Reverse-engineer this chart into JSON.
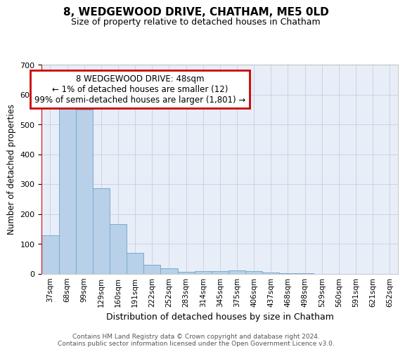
{
  "title1": "8, WEDGEWOOD DRIVE, CHATHAM, ME5 0LD",
  "title2": "Size of property relative to detached houses in Chatham",
  "xlabel": "Distribution of detached houses by size in Chatham",
  "ylabel": "Number of detached properties",
  "categories": [
    "37sqm",
    "68sqm",
    "99sqm",
    "129sqm",
    "160sqm",
    "191sqm",
    "222sqm",
    "252sqm",
    "283sqm",
    "314sqm",
    "345sqm",
    "375sqm",
    "406sqm",
    "437sqm",
    "468sqm",
    "498sqm",
    "529sqm",
    "560sqm",
    "591sqm",
    "621sqm",
    "652sqm"
  ],
  "values": [
    128,
    555,
    550,
    285,
    165,
    70,
    30,
    18,
    5,
    8,
    8,
    10,
    8,
    4,
    2,
    1,
    0,
    0,
    0,
    0,
    0
  ],
  "bar_color": "#b8d0e8",
  "bar_edge_color": "#7aabcf",
  "highlight_line_color": "#cc0000",
  "annotation_text": "8 WEDGEWOOD DRIVE: 48sqm\n← 1% of detached houses are smaller (12)\n99% of semi-detached houses are larger (1,801) →",
  "annotation_box_edgecolor": "#cc0000",
  "bg_color": "#e8eef8",
  "grid_color": "#c0c8d8",
  "footer_text": "Contains HM Land Registry data © Crown copyright and database right 2024.\nContains public sector information licensed under the Open Government Licence v3.0.",
  "ylim": [
    0,
    700
  ],
  "yticks": [
    0,
    100,
    200,
    300,
    400,
    500,
    600,
    700
  ]
}
